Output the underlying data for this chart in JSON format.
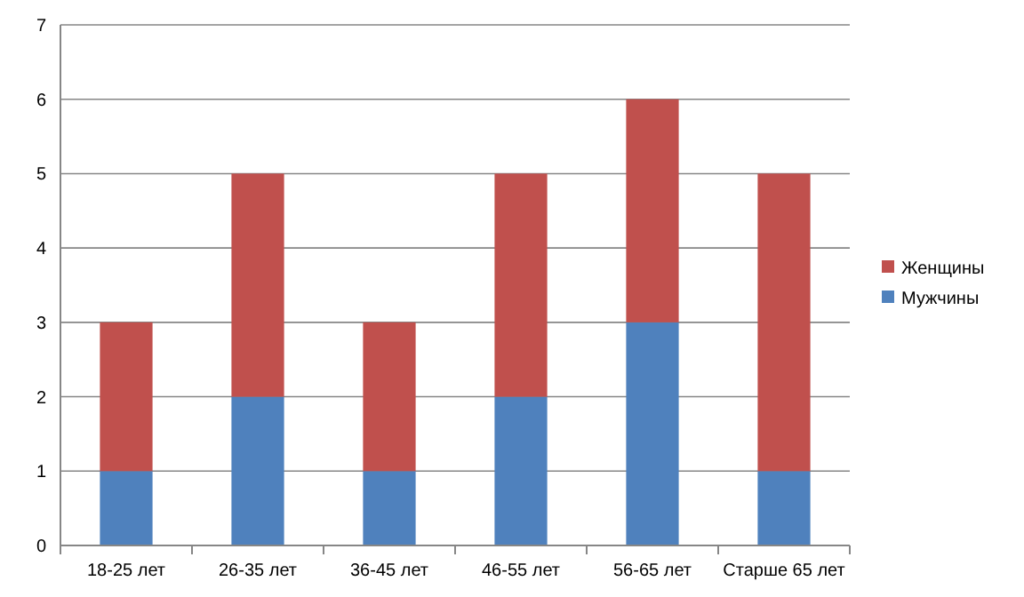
{
  "chart_data": {
    "type": "bar",
    "stacked": true,
    "categories": [
      "18-25 лет",
      "26-35 лет",
      "36-45 лет",
      "46-55 лет",
      "56-65 лет",
      "Старше 65 лет"
    ],
    "series": [
      {
        "name": "Мужчины",
        "color": "#4f81bd",
        "values": [
          1,
          2,
          1,
          2,
          3,
          1
        ]
      },
      {
        "name": "Женщины",
        "color": "#c0504d",
        "values": [
          2,
          3,
          2,
          3,
          3,
          4
        ]
      }
    ],
    "ylim": [
      0,
      7
    ],
    "yticks": [
      0,
      1,
      2,
      3,
      4,
      5,
      6,
      7
    ],
    "grid": "y",
    "legend": "right"
  }
}
